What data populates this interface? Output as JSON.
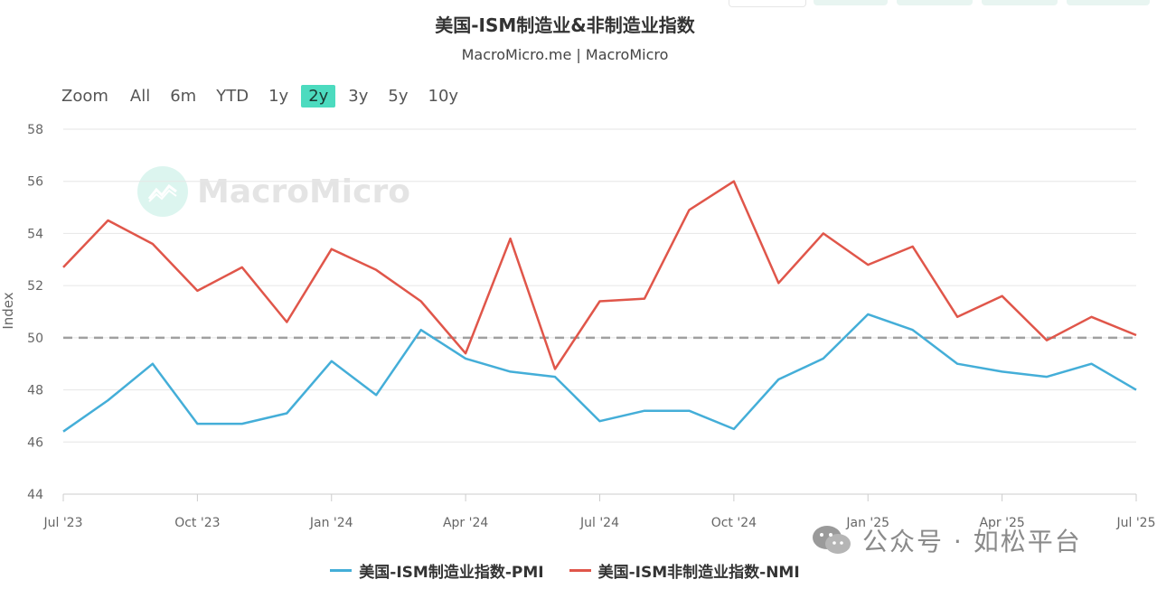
{
  "header": {
    "title": "美国-ISM制造业&非制造业指数",
    "subtitle": "MacroMicro.me | MacroMicro"
  },
  "zoom": {
    "label": "Zoom",
    "ranges": [
      "All",
      "6m",
      "YTD",
      "1y",
      "2y",
      "3y",
      "5y",
      "10y"
    ],
    "selected": "2y"
  },
  "watermark": {
    "text": "MacroMicro"
  },
  "credit": {
    "text": "公众号 · 如松平台",
    "icon": "wechat-icon"
  },
  "colors": {
    "pmi": "#44aed8",
    "nmi": "#e0564a",
    "reference": "#a0a0a0",
    "accent": "#4cdbbf"
  },
  "chart_data": {
    "type": "line",
    "title": "美国-ISM制造业&非制造业指数",
    "subtitle": "MacroMicro.me | MacroMicro",
    "ylabel": "Index",
    "ylim": [
      44,
      58
    ],
    "yticks": [
      "44",
      "46",
      "48",
      "50",
      "52",
      "54",
      "56",
      "58"
    ],
    "x": [
      "2023-07",
      "2023-08",
      "2023-09",
      "2023-10",
      "2023-11",
      "2023-12",
      "2024-01",
      "2024-02",
      "2024-03",
      "2024-04",
      "2024-05",
      "2024-06",
      "2024-07",
      "2024-08",
      "2024-09",
      "2024-10",
      "2024-11",
      "2024-12",
      "2025-01",
      "2025-02",
      "2025-03",
      "2025-04",
      "2025-05",
      "2025-06",
      "2025-07"
    ],
    "xticks": [
      {
        "at": "2023-07",
        "label": "Jul '23"
      },
      {
        "at": "2023-10",
        "label": "Oct '23"
      },
      {
        "at": "2024-01",
        "label": "Jan '24"
      },
      {
        "at": "2024-04",
        "label": "Apr '24"
      },
      {
        "at": "2024-07",
        "label": "Jul '24"
      },
      {
        "at": "2024-10",
        "label": "Oct '24"
      },
      {
        "at": "2025-01",
        "label": "Jan '25"
      },
      {
        "at": "2025-04",
        "label": "Apr '25"
      },
      {
        "at": "2025-07",
        "label": "Jul '25"
      }
    ],
    "reference_line": 50,
    "grid": true,
    "legend": "bottom",
    "series": [
      {
        "name": "美国-ISM制造业指数-PMI",
        "values": [
          46.4,
          47.6,
          49.0,
          46.7,
          46.7,
          47.1,
          49.1,
          47.8,
          50.3,
          49.2,
          48.7,
          48.5,
          46.8,
          47.2,
          47.2,
          46.5,
          48.4,
          49.2,
          50.9,
          50.3,
          49.0,
          48.7,
          48.5,
          49.0,
          48.0
        ]
      },
      {
        "name": "美国-ISM非制造业指数-NMI",
        "values": [
          52.7,
          54.5,
          53.6,
          51.8,
          52.7,
          50.6,
          53.4,
          52.6,
          51.4,
          49.4,
          53.8,
          48.8,
          51.4,
          51.5,
          54.9,
          56.0,
          52.1,
          54.0,
          52.8,
          53.5,
          50.8,
          51.6,
          49.9,
          50.8,
          50.1
        ]
      }
    ]
  }
}
